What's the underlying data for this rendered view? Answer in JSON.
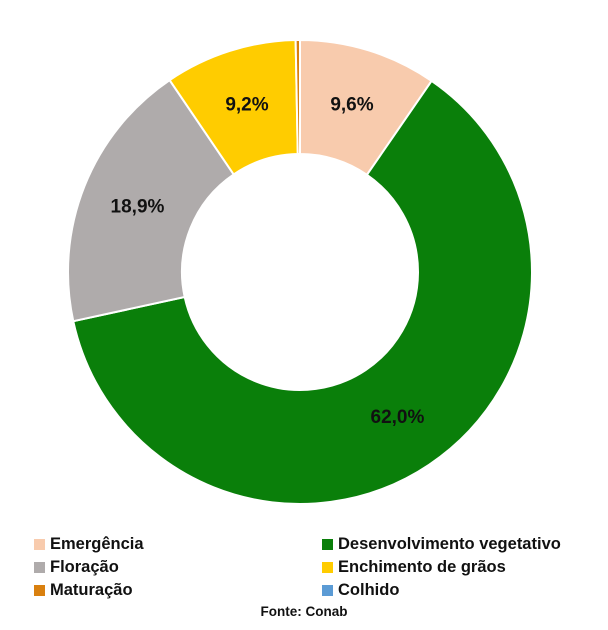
{
  "chart_data": {
    "type": "pie",
    "donut": true,
    "title": "",
    "categories": [
      "Emergência",
      "Desenvolvimento vegetativo",
      "Floração",
      "Enchimento de grãos",
      "Maturação",
      "Colhido"
    ],
    "values": [
      9.6,
      62.0,
      18.9,
      9.2,
      0.3,
      0.0
    ],
    "labels": [
      "9,6%",
      "62,0%",
      "18,9%",
      "9,2%",
      "",
      ""
    ],
    "colors": [
      "#F8CBAD",
      "#0A7F0A",
      "#AFABAB",
      "#FFCC00",
      "#D9800F",
      "#5B9BD5"
    ],
    "legend_position": "bottom"
  },
  "source": "Fonte: Conab"
}
